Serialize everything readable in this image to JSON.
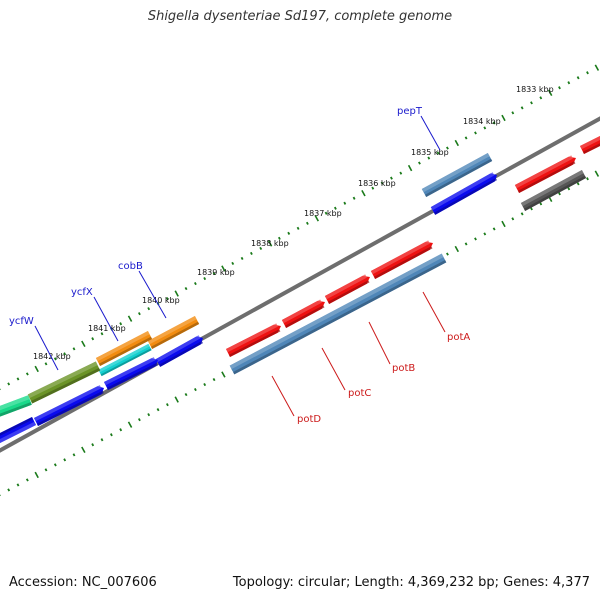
{
  "title": "Shigella dysenteriae Sd197, complete genome",
  "footer": {
    "accession": "Accession: NC_007606",
    "summary": "Topology: circular; Length: 4,369,232 bp; Genes: 4,377"
  },
  "colors": {
    "backbone": "#7f7f7f",
    "tick": "#1a7a1a",
    "forward_label": "#1a1acc",
    "reverse_label": "#cc1a1a",
    "cds": "#0a0aee",
    "red_feature": "#ee1111",
    "steel_blue": "#4f86b8",
    "gray_feature": "#555555"
  },
  "kbp_labels": [
    "1833 kbp",
    "1834 kbp",
    "1835 kbp",
    "1836 kbp",
    "1837 kbp",
    "1838 kbp",
    "1839 kbp",
    "1840 kbp",
    "1841 kbp",
    "1842 kbp"
  ],
  "forward_genes": [
    "pepT",
    "cobB",
    "ycfX",
    "ycfW"
  ],
  "reverse_genes": [
    "potA",
    "potB",
    "potC",
    "potD"
  ]
}
